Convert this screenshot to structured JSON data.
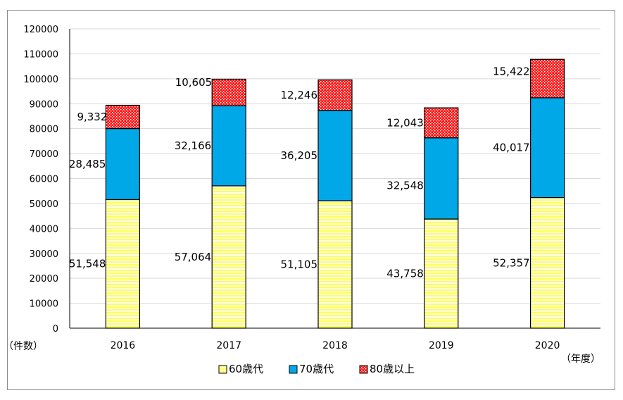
{
  "chart_data": {
    "type": "bar",
    "stacked": true,
    "categories": [
      "2016",
      "2017",
      "2018",
      "2019",
      "2020"
    ],
    "series": [
      {
        "name": "60歳代",
        "values": [
          51548,
          57064,
          51105,
          43758,
          52357
        ],
        "labels": [
          "51,548",
          "57,064",
          "51,105",
          "43,758",
          "52,357"
        ],
        "color": "#ffff66",
        "pattern": "horizontal-stripes"
      },
      {
        "name": "70歳代",
        "values": [
          28485,
          32166,
          36205,
          32548,
          40017
        ],
        "labels": [
          "28,485",
          "32,166",
          "36,205",
          "32,548",
          "40,017"
        ],
        "color": "#00a8e8",
        "pattern": "solid"
      },
      {
        "name": "80歳以上",
        "values": [
          9332,
          10605,
          12246,
          12043,
          15422
        ],
        "labels": [
          "9,332",
          "10,605",
          "12,246",
          "12,043",
          "15,422"
        ],
        "color": "#ff0000",
        "pattern": "checker"
      }
    ],
    "ylim": [
      0,
      120000
    ],
    "yticks": [
      "0",
      "10000",
      "20000",
      "30000",
      "40000",
      "50000",
      "60000",
      "70000",
      "80000",
      "90000",
      "100000",
      "110000",
      "120000"
    ],
    "ylabel": "（件数）",
    "xlabel": "（年度）",
    "grid": true,
    "legend_position": "bottom"
  }
}
